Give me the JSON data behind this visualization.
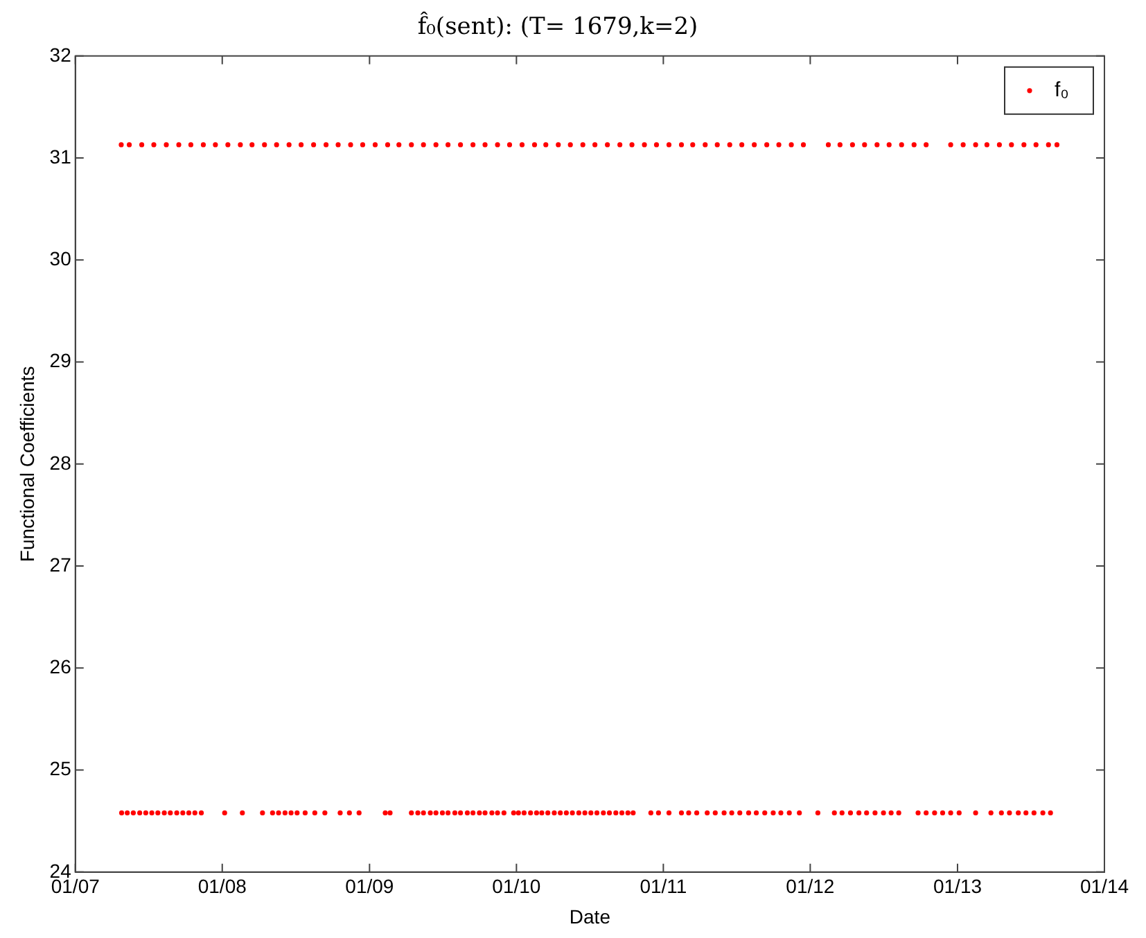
{
  "chart_data": {
    "type": "scatter",
    "title": "f̂₀(sent): (T= 1679,k=2)",
    "xlabel": "Date",
    "ylabel": "Functional Coefficients",
    "xlim": [
      "2007-01-01",
      "2014-01-01"
    ],
    "xticks": [
      {
        "value": "2007-01-01",
        "label": "01/07"
      },
      {
        "value": "2008-01-01",
        "label": "01/08"
      },
      {
        "value": "2009-01-01",
        "label": "01/09"
      },
      {
        "value": "2010-01-01",
        "label": "01/10"
      },
      {
        "value": "2011-01-01",
        "label": "01/11"
      },
      {
        "value": "2012-01-01",
        "label": "01/12"
      },
      {
        "value": "2013-01-01",
        "label": "01/13"
      },
      {
        "value": "2014-01-01",
        "label": "01/14"
      }
    ],
    "ylim": [
      24,
      32
    ],
    "yticks": [
      24,
      25,
      26,
      27,
      28,
      29,
      30,
      31,
      32
    ],
    "grid": false,
    "legend": "top right",
    "marker": "circle",
    "series": [
      {
        "name": "f₀",
        "color": "#ff0000",
        "x": [
          "2007-04-25",
          "2007-05-15",
          "2007-06-15",
          "2007-07-15",
          "2007-08-15",
          "2007-09-15",
          "2007-10-15",
          "2007-11-15",
          "2007-12-15",
          "2008-01-15",
          "2008-02-15",
          "2008-03-15",
          "2008-04-15",
          "2008-05-15",
          "2008-06-15",
          "2008-07-15",
          "2008-08-15",
          "2008-09-15",
          "2008-10-15",
          "2008-11-15",
          "2008-12-15",
          "2009-01-15",
          "2009-02-15",
          "2009-03-15",
          "2009-04-15",
          "2009-05-15",
          "2009-06-15",
          "2009-07-15",
          "2009-08-15",
          "2009-09-15",
          "2009-10-15",
          "2009-11-15",
          "2009-12-15",
          "2010-01-15",
          "2010-02-15",
          "2010-03-15",
          "2010-04-15",
          "2010-05-15",
          "2010-06-15",
          "2010-07-15",
          "2010-08-15",
          "2010-09-15",
          "2010-10-15",
          "2010-11-15",
          "2010-12-15",
          "2011-01-15",
          "2011-02-15",
          "2011-03-15",
          "2011-04-15",
          "2011-05-15",
          "2011-06-15",
          "2011-07-15",
          "2011-08-15",
          "2011-09-15",
          "2011-10-15",
          "2011-11-15",
          "2011-12-15",
          "2012-02-15",
          "2012-03-15",
          "2012-04-15",
          "2012-05-15",
          "2012-06-15",
          "2012-07-15",
          "2012-08-15",
          "2012-09-15",
          "2012-10-15",
          "2012-12-15",
          "2013-01-15",
          "2013-02-15",
          "2013-03-15",
          "2013-04-15",
          "2013-05-15",
          "2013-06-15",
          "2013-07-15",
          "2013-08-15",
          "2013-09-05",
          "2007-04-26",
          "2007-05-10",
          "2007-05-25",
          "2007-06-10",
          "2007-06-25",
          "2007-07-10",
          "2007-07-25",
          "2007-08-10",
          "2007-08-25",
          "2007-09-10",
          "2007-09-25",
          "2007-10-10",
          "2007-10-25",
          "2007-11-10",
          "2008-01-07",
          "2008-02-20",
          "2008-04-10",
          "2008-05-05",
          "2008-05-20",
          "2008-06-05",
          "2008-06-20",
          "2008-07-05",
          "2008-07-25",
          "2008-08-18",
          "2008-09-12",
          "2008-10-20",
          "2008-11-12",
          "2008-12-06",
          "2009-02-09",
          "2009-02-21",
          "2009-04-15",
          "2009-05-01",
          "2009-05-15",
          "2009-06-01",
          "2009-06-15",
          "2009-07-01",
          "2009-07-15",
          "2009-08-01",
          "2009-08-15",
          "2009-09-01",
          "2009-09-15",
          "2009-10-01",
          "2009-10-15",
          "2009-11-01",
          "2009-11-15",
          "2009-12-01",
          "2009-12-25",
          "2010-01-06",
          "2010-01-20",
          "2010-02-05",
          "2010-02-20",
          "2010-03-05",
          "2010-03-20",
          "2010-04-05",
          "2010-04-20",
          "2010-05-05",
          "2010-05-20",
          "2010-06-05",
          "2010-06-20",
          "2010-07-05",
          "2010-07-20",
          "2010-08-05",
          "2010-08-20",
          "2010-09-05",
          "2010-09-20",
          "2010-10-05",
          "2010-10-18",
          "2010-12-01",
          "2010-12-20",
          "2011-01-15",
          "2011-02-15",
          "2011-03-05",
          "2011-03-25",
          "2011-04-20",
          "2011-05-10",
          "2011-06-01",
          "2011-06-20",
          "2011-07-10",
          "2011-08-01",
          "2011-08-20",
          "2011-09-10",
          "2011-10-01",
          "2011-10-20",
          "2011-11-10",
          "2011-12-05",
          "2012-01-20",
          "2012-03-01",
          "2012-03-20",
          "2012-04-10",
          "2012-05-01",
          "2012-05-20",
          "2012-06-10",
          "2012-07-01",
          "2012-07-20",
          "2012-08-08",
          "2012-09-25",
          "2012-10-15",
          "2012-11-05",
          "2012-11-25",
          "2012-12-15",
          "2013-01-05",
          "2013-02-15",
          "2013-03-25",
          "2013-04-20",
          "2013-05-10",
          "2013-06-01",
          "2013-06-20",
          "2013-07-10",
          "2013-08-01",
          "2013-08-20"
        ],
        "values": [
          31.13,
          31.13,
          31.13,
          31.13,
          31.13,
          31.13,
          31.13,
          31.13,
          31.13,
          31.13,
          31.13,
          31.13,
          31.13,
          31.13,
          31.13,
          31.13,
          31.13,
          31.13,
          31.13,
          31.13,
          31.13,
          31.13,
          31.13,
          31.13,
          31.13,
          31.13,
          31.13,
          31.13,
          31.13,
          31.13,
          31.13,
          31.13,
          31.13,
          31.13,
          31.13,
          31.13,
          31.13,
          31.13,
          31.13,
          31.13,
          31.13,
          31.13,
          31.13,
          31.13,
          31.13,
          31.13,
          31.13,
          31.13,
          31.13,
          31.13,
          31.13,
          31.13,
          31.13,
          31.13,
          31.13,
          31.13,
          31.13,
          31.13,
          31.13,
          31.13,
          31.13,
          31.13,
          31.13,
          31.13,
          31.13,
          31.13,
          31.13,
          31.13,
          31.13,
          31.13,
          31.13,
          31.13,
          31.13,
          31.13,
          31.13,
          31.13,
          24.58,
          24.58,
          24.58,
          24.58,
          24.58,
          24.58,
          24.58,
          24.58,
          24.58,
          24.58,
          24.58,
          24.58,
          24.58,
          24.58,
          24.58,
          24.58,
          24.58,
          24.58,
          24.58,
          24.58,
          24.58,
          24.58,
          24.58,
          24.58,
          24.58,
          24.58,
          24.58,
          24.58,
          24.58,
          24.58,
          24.58,
          24.58,
          24.58,
          24.58,
          24.58,
          24.58,
          24.58,
          24.58,
          24.58,
          24.58,
          24.58,
          24.58,
          24.58,
          24.58,
          24.58,
          24.58,
          24.58,
          24.58,
          24.58,
          24.58,
          24.58,
          24.58,
          24.58,
          24.58,
          24.58,
          24.58,
          24.58,
          24.58,
          24.58,
          24.58,
          24.58,
          24.58,
          24.58,
          24.58,
          24.58,
          24.58,
          24.58,
          24.58,
          24.58,
          24.58,
          24.58,
          24.58,
          24.58,
          24.58,
          24.58,
          24.58,
          24.58,
          24.58,
          24.58,
          24.58,
          24.58,
          24.58,
          24.58,
          24.58,
          24.58,
          24.58,
          24.58,
          24.58,
          24.58,
          24.58,
          24.58,
          24.58,
          24.58,
          24.58,
          24.58,
          24.58,
          24.58,
          24.58,
          24.58,
          24.58,
          24.58,
          24.58,
          24.58,
          24.58,
          24.58,
          24.58,
          24.58,
          24.58,
          24.58,
          24.58
        ]
      }
    ]
  }
}
